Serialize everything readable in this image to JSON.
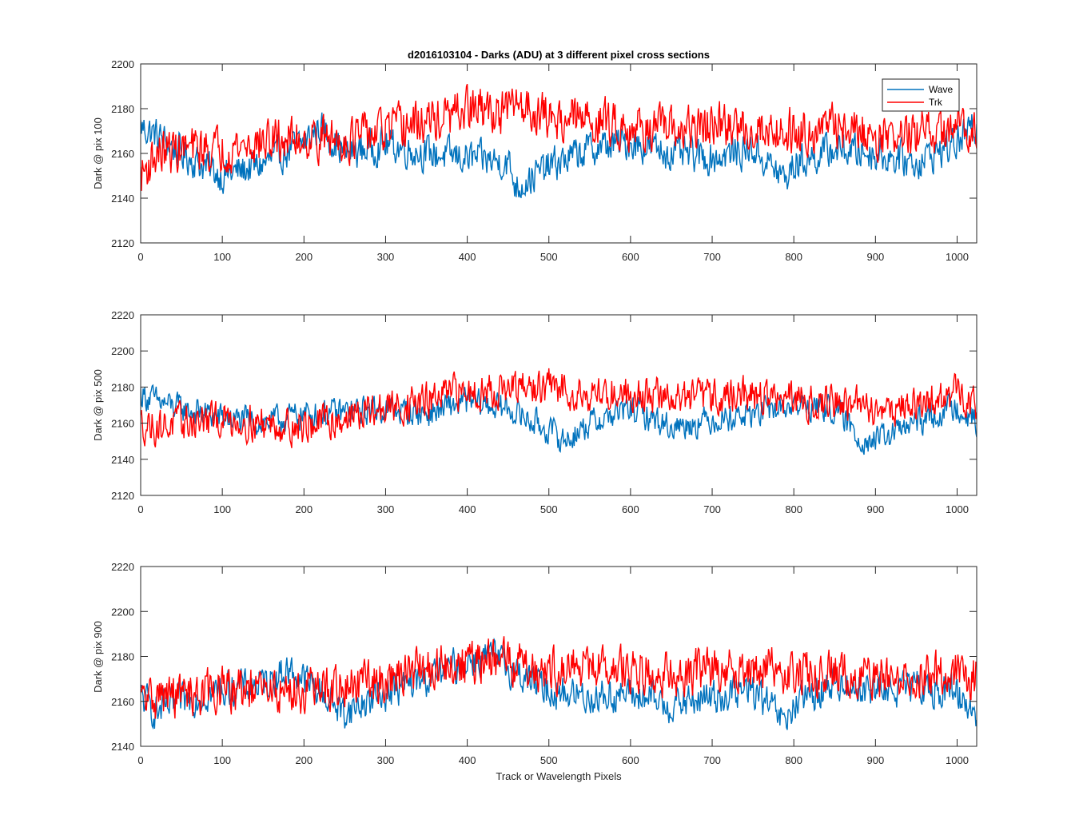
{
  "figure": {
    "title": "d2016103104 - Darks (ADU) at 3 different pixel cross sections",
    "xlabel": "Track or Wavelength Pixels"
  },
  "colors": {
    "wave": "#0072BD",
    "trk": "#FF0000",
    "axes": "#262626"
  },
  "legend": {
    "placement": "top-right",
    "entries": [
      "Wave",
      "Trk"
    ]
  },
  "chart_data": [
    {
      "type": "line",
      "ylabel": "Dark @ pix 100",
      "xlim": [
        0,
        1024
      ],
      "ylim": [
        2120,
        2200
      ],
      "xticks": [
        0,
        100,
        200,
        300,
        400,
        500,
        600,
        700,
        800,
        900,
        1000
      ],
      "yticks": [
        2120,
        2140,
        2160,
        2180,
        2200
      ],
      "series": [
        {
          "name": "Wave",
          "color": "#0072BD",
          "x": [
            0,
            20,
            50,
            100,
            150,
            200,
            220,
            250,
            300,
            350,
            400,
            450,
            460,
            500,
            550,
            600,
            650,
            700,
            750,
            790,
            800,
            850,
            900,
            950,
            1000,
            1024
          ],
          "values": [
            2172,
            2168,
            2160,
            2150,
            2155,
            2165,
            2172,
            2160,
            2164,
            2160,
            2158,
            2156,
            2145,
            2154,
            2162,
            2165,
            2160,
            2158,
            2162,
            2148,
            2155,
            2162,
            2160,
            2156,
            2165,
            2172
          ]
        },
        {
          "name": "Trk",
          "color": "#FF0000",
          "x": [
            0,
            20,
            50,
            100,
            150,
            200,
            250,
            300,
            350,
            380,
            400,
            450,
            460,
            500,
            550,
            600,
            650,
            700,
            750,
            800,
            850,
            900,
            950,
            1000,
            1024
          ],
          "values": [
            2150,
            2160,
            2162,
            2162,
            2165,
            2167,
            2166,
            2170,
            2174,
            2176,
            2180,
            2178,
            2183,
            2176,
            2175,
            2172,
            2170,
            2172,
            2171,
            2170,
            2172,
            2168,
            2168,
            2170,
            2174
          ]
        }
      ]
    },
    {
      "type": "line",
      "ylabel": "Dark @ pix 500",
      "xlim": [
        0,
        1024
      ],
      "ylim": [
        2120,
        2220
      ],
      "xticks": [
        0,
        100,
        200,
        300,
        400,
        500,
        600,
        700,
        800,
        900,
        1000
      ],
      "yticks": [
        2120,
        2140,
        2160,
        2180,
        2200,
        2220
      ],
      "series": [
        {
          "name": "Wave",
          "color": "#0072BD",
          "x": [
            0,
            20,
            50,
            100,
            150,
            200,
            250,
            300,
            350,
            400,
            450,
            500,
            520,
            550,
            600,
            650,
            700,
            750,
            800,
            850,
            880,
            900,
            950,
            1000,
            1024
          ],
          "values": [
            2176,
            2172,
            2168,
            2163,
            2160,
            2165,
            2166,
            2168,
            2165,
            2172,
            2168,
            2156,
            2150,
            2160,
            2168,
            2158,
            2162,
            2165,
            2170,
            2168,
            2152,
            2150,
            2160,
            2170,
            2160
          ]
        },
        {
          "name": "Trk",
          "color": "#FF0000",
          "x": [
            0,
            20,
            50,
            100,
            150,
            200,
            250,
            300,
            350,
            380,
            400,
            450,
            500,
            550,
            600,
            650,
            700,
            750,
            800,
            850,
            900,
            950,
            1000,
            1024
          ],
          "values": [
            2160,
            2158,
            2160,
            2162,
            2160,
            2158,
            2163,
            2168,
            2172,
            2176,
            2178,
            2178,
            2180,
            2176,
            2177,
            2174,
            2175,
            2176,
            2172,
            2172,
            2168,
            2170,
            2176,
            2172
          ]
        }
      ]
    },
    {
      "type": "line",
      "ylabel": "Dark @ pix 900",
      "xlim": [
        0,
        1024
      ],
      "ylim": [
        2140,
        2220
      ],
      "xticks": [
        0,
        100,
        200,
        300,
        400,
        500,
        600,
        700,
        800,
        900,
        1000
      ],
      "yticks": [
        2140,
        2160,
        2180,
        2200,
        2220
      ],
      "series": [
        {
          "name": "Wave",
          "color": "#0072BD",
          "x": [
            0,
            20,
            50,
            100,
            150,
            180,
            200,
            250,
            300,
            350,
            400,
            430,
            450,
            500,
            550,
            600,
            650,
            700,
            750,
            790,
            800,
            850,
            900,
            950,
            1000,
            1024
          ],
          "values": [
            2162,
            2155,
            2160,
            2165,
            2168,
            2174,
            2170,
            2155,
            2164,
            2170,
            2178,
            2180,
            2175,
            2165,
            2162,
            2163,
            2158,
            2162,
            2165,
            2150,
            2158,
            2168,
            2165,
            2166,
            2164,
            2155
          ]
        },
        {
          "name": "Trk",
          "color": "#FF0000",
          "x": [
            0,
            20,
            50,
            100,
            150,
            200,
            250,
            300,
            350,
            400,
            450,
            500,
            550,
            600,
            650,
            700,
            750,
            800,
            850,
            900,
            950,
            1000,
            1024
          ],
          "values": [
            2160,
            2162,
            2163,
            2165,
            2164,
            2165,
            2166,
            2170,
            2174,
            2177,
            2178,
            2174,
            2175,
            2174,
            2172,
            2174,
            2175,
            2172,
            2173,
            2170,
            2172,
            2172,
            2170
          ]
        }
      ]
    }
  ]
}
